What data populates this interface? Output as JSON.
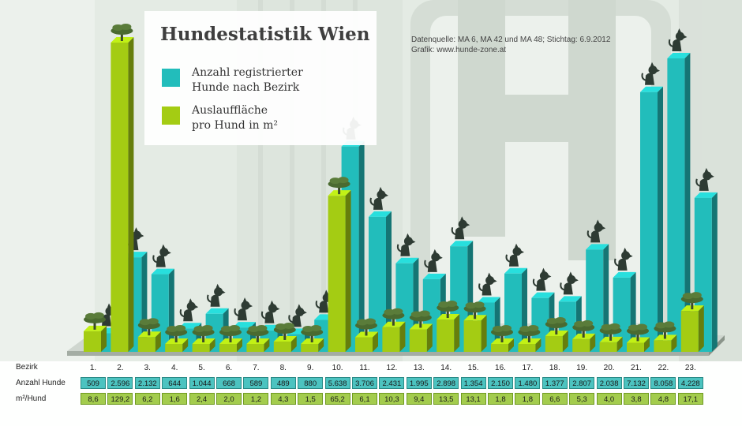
{
  "title": "Hundestatistik Wien",
  "source_line1": "Datenquelle: MA 6, MA 42 und MA 48; Stichtag: 6.9.2012",
  "source_line2": "Grafik: www.hunde-zone.at",
  "legend": [
    {
      "label_line1": "Anzahl registrierter",
      "label_line2": "Hunde nach Bezirk",
      "color": "#22bdbb"
    },
    {
      "label_line1": "Auslauffläche",
      "label_line2": "pro Hund in m²",
      "color": "#a4cc13"
    }
  ],
  "table": {
    "row_labels": [
      "Bezirk",
      "Anzahl Hunde",
      "m²/Hund"
    ],
    "dog_cells": [
      "509",
      "2.596",
      "2.132",
      "644",
      "1.044",
      "668",
      "589",
      "489",
      "880",
      "5.638",
      "3.706",
      "2.431",
      "1.995",
      "2.898",
      "1.354",
      "2.150",
      "1.480",
      "1.377",
      "2.807",
      "2.038",
      "7.132",
      "8.058",
      "4.228"
    ],
    "area_cells": [
      "8,6",
      "129,2",
      "6,2",
      "1,6",
      "2,4",
      "2,0",
      "1,2",
      "4,3",
      "1,5",
      "65,2",
      "6,1",
      "10,3",
      "9,4",
      "13,5",
      "13,1",
      "1,8",
      "1,8",
      "6,6",
      "5,3",
      "4,0",
      "3,8",
      "4,8",
      "17,1"
    ]
  },
  "chart_data": {
    "type": "bar",
    "categories": [
      "1.",
      "2.",
      "3.",
      "4.",
      "5.",
      "6.",
      "7.",
      "8.",
      "9.",
      "10.",
      "11.",
      "12.",
      "13.",
      "14.",
      "15.",
      "16.",
      "17.",
      "18.",
      "19.",
      "20.",
      "21.",
      "22.",
      "23."
    ],
    "series": [
      {
        "name": "Anzahl registrierter Hunde nach Bezirk",
        "color": "#22bdbb",
        "values": [
          509,
          2596,
          2132,
          644,
          1044,
          668,
          589,
          489,
          880,
          5638,
          3706,
          2431,
          1995,
          2898,
          1354,
          2150,
          1480,
          1377,
          2807,
          2038,
          7132,
          8058,
          4228
        ]
      },
      {
        "name": "Auslauffläche pro Hund in m²",
        "color": "#a4cc13",
        "values": [
          8.6,
          129.2,
          6.2,
          1.6,
          2.4,
          2.0,
          1.2,
          4.3,
          1.5,
          65.2,
          6.1,
          10.3,
          9.4,
          13.5,
          13.1,
          1.8,
          1.8,
          6.6,
          5.3,
          4.0,
          3.8,
          4.8,
          17.1
        ]
      }
    ],
    "xlabel": "Bezirk",
    "grid": false,
    "legend_position": "top-left"
  }
}
